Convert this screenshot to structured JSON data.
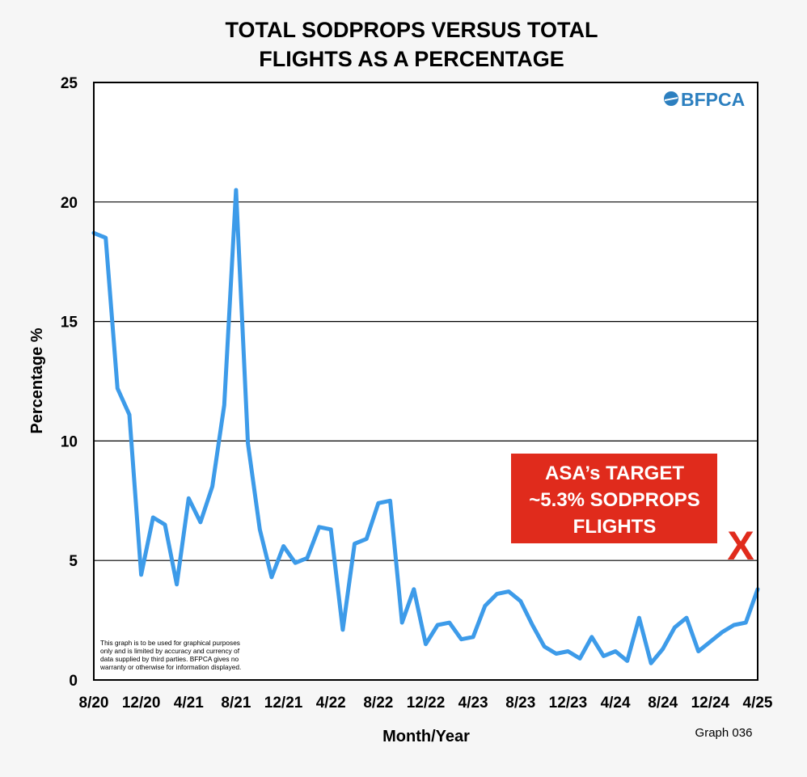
{
  "chart_data": {
    "type": "line",
    "title_lines": [
      "TOTAL SODPROPS VERSUS TOTAL",
      "FLIGHTS AS A PERCENTAGE"
    ],
    "xlabel": "Month/Year",
    "ylabel": "Percentage %",
    "x_tick_labels": [
      "8/20",
      "12/20",
      "4/21",
      "8/21",
      "12/21",
      "4/22",
      "8/22",
      "12/22",
      "4/23",
      "8/23",
      "12/23",
      "4/24",
      "8/24",
      "12/24",
      "4/25"
    ],
    "y_ticks": [
      "0",
      "5",
      "10",
      "15",
      "20",
      "25"
    ],
    "ylim": [
      0,
      25
    ],
    "x_start": "8/20",
    "x_end": "4/25",
    "grid": "horizontal",
    "series": [
      {
        "color": "#3d9be9",
        "values": [
          18.7,
          18.5,
          12.2,
          11.1,
          4.4,
          6.8,
          6.5,
          4.0,
          7.6,
          6.6,
          8.1,
          11.5,
          20.5,
          9.9,
          6.3,
          4.3,
          5.6,
          4.9,
          5.1,
          6.4,
          6.3,
          2.1,
          5.7,
          5.9,
          7.4,
          7.5,
          2.4,
          3.8,
          1.5,
          2.3,
          2.4,
          1.7,
          1.8,
          3.1,
          3.6,
          3.7,
          3.3,
          2.3,
          1.4,
          1.1,
          1.2,
          0.9,
          1.8,
          1.0,
          1.2,
          0.8,
          2.6,
          0.7,
          1.3,
          2.2,
          2.6,
          1.2,
          1.6,
          2.0,
          2.3,
          2.4,
          3.8
        ]
      }
    ],
    "annotation": {
      "lines": [
        "ASA’s TARGET",
        "~5.3% SODPROPS",
        "FLIGHTS"
      ],
      "box_color": "#e02b1c",
      "marker_text": "X",
      "marker_color": "#e02b1c"
    },
    "graph_id": "Graph 036",
    "disclaimer_lines": [
      "This graph is to be used for graphical purposes",
      "only and is limited by accuracy and currency of",
      "data supplied by third parties. BFPCA gives no",
      "warranty or otherwise for information displayed."
    ],
    "logo": {
      "text": "BFPCA",
      "color": "#2c7fbf"
    }
  }
}
